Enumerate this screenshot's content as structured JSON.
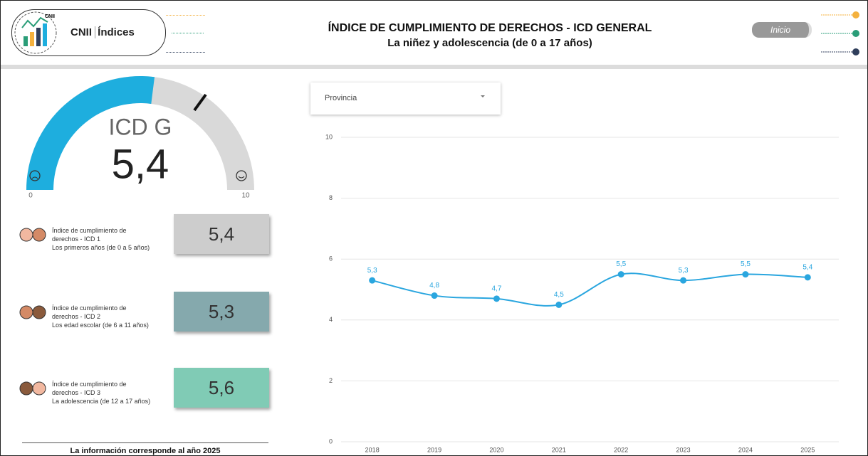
{
  "header": {
    "logo_top": "CNII",
    "logo_text": "Índices",
    "title": "ÍNDICE DE CUMPLIMIENTO DE DERECHOS - ICD GENERAL",
    "subtitle": "La niñez y adolescencia (de 0 a 17 años)",
    "button": "Inicio"
  },
  "gauge": {
    "label": "ICD G",
    "value": 5.4,
    "value_label": "5,4",
    "min": 0,
    "max": 10,
    "color": "#1eaede"
  },
  "cards": [
    {
      "title": "Índice de cumplimiento de derechos - ICD 1",
      "subtitle": "Los primeros años (de 0 a 5 años)",
      "value": "5,4",
      "color": "#cdcdcd"
    },
    {
      "title": "Índice de cumplimiento de derechos - ICD 2",
      "subtitle": "Los edad escolar (de 6 a 11 años)",
      "value": "5,3",
      "color": "#85a9ad"
    },
    {
      "title": "Índice de cumplimiento de derechos - ICD 3",
      "subtitle": "La adolescencia (de 12 a 17 años)",
      "value": "5,6",
      "color": "#80cbb5"
    }
  ],
  "footer": "La información corresponde al año 2025",
  "filter": "Provincia",
  "chart_data": {
    "type": "line",
    "categories": [
      "2018",
      "2019",
      "2020",
      "2021",
      "2022",
      "2023",
      "2024",
      "2025"
    ],
    "values": [
      5.3,
      4.8,
      4.7,
      4.5,
      5.5,
      5.3,
      5.5,
      5.4
    ],
    "value_labels": [
      "5,3",
      "4,8",
      "4,7",
      "4,5",
      "5,5",
      "5,3",
      "5,5",
      "5,4"
    ],
    "color": "#2aa6df",
    "ylim": [
      0,
      10
    ],
    "yticks": [
      0,
      2,
      4,
      6,
      8,
      10
    ],
    "grid": true
  }
}
